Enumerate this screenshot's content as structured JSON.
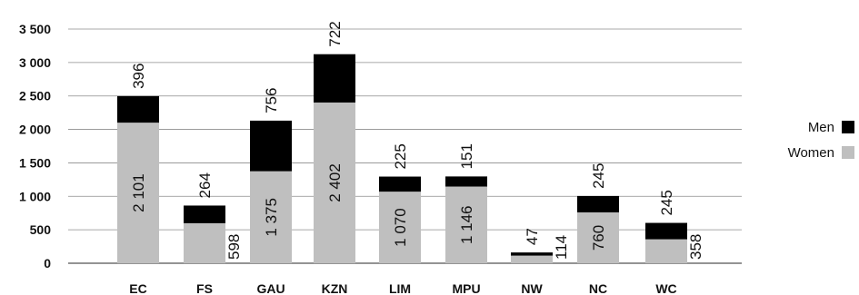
{
  "chart_data": {
    "type": "bar",
    "stacked": true,
    "categories": [
      "EC",
      "FS",
      "GAU",
      "KZN",
      "LIM",
      "MPU",
      "NW",
      "NC",
      "WC"
    ],
    "series": [
      {
        "name": "Women",
        "color": "#bfbfbf",
        "values": [
          2101,
          598,
          1375,
          2402,
          1070,
          1146,
          114,
          760,
          358
        ],
        "labels": [
          "2 101",
          "598",
          "1 375",
          "2 402",
          "1 070",
          "1 146",
          "114",
          "760",
          "358"
        ]
      },
      {
        "name": "Men",
        "color": "#000000",
        "values": [
          396,
          264,
          756,
          722,
          225,
          151,
          47,
          245,
          245
        ],
        "labels": [
          "396",
          "264",
          "756",
          "722",
          "225",
          "151",
          "47",
          "245",
          "245"
        ]
      }
    ],
    "ylim": [
      0,
      3500
    ],
    "yticks": [
      0,
      500,
      1000,
      1500,
      2000,
      2500,
      3000,
      3500
    ],
    "ytick_labels": [
      "0",
      "500",
      "1 000",
      "1 500",
      "2 000",
      "2 500",
      "3 000",
      "3 500"
    ],
    "grid": true,
    "legend_position": "right",
    "legend_order": [
      "Men",
      "Women"
    ]
  }
}
